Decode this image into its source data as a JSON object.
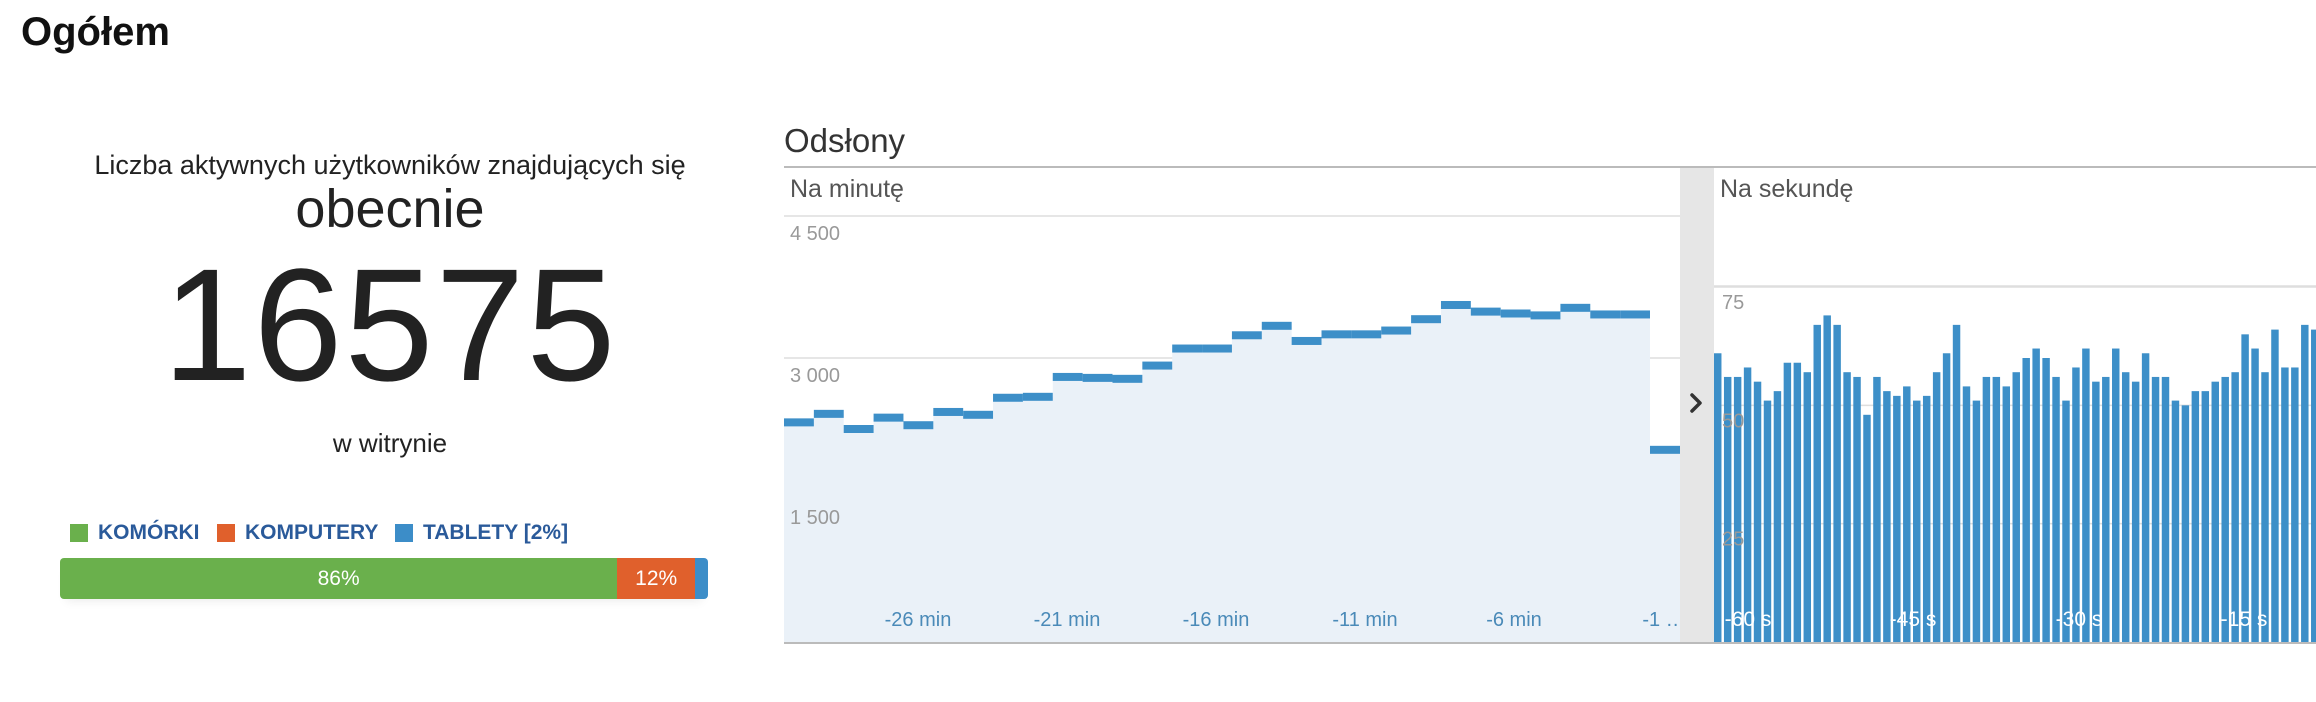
{
  "page": {
    "title": "Ogółem"
  },
  "active_users": {
    "label": "Liczba aktywnych użytkowników znajdujących się",
    "now": "obecnie",
    "count": "16575",
    "where": "w witrynie"
  },
  "devices": {
    "legend": [
      {
        "label": "KOMÓRKI",
        "color": "#6ab04c"
      },
      {
        "label": "KOMPUTERY",
        "color": "#e0602c"
      },
      {
        "label": "TABLETY [2%]",
        "color": "#3c8dc8"
      }
    ],
    "bar": [
      {
        "label": "86%",
        "value": 86,
        "color": "#6ab04c"
      },
      {
        "label": "12%",
        "value": 12,
        "color": "#e0602c"
      },
      {
        "label": "",
        "value": 2,
        "color": "#3c8dc8"
      }
    ]
  },
  "pageviews": {
    "title": "Odsłony",
    "toggle_icon": "chevron-right-icon"
  },
  "chart_data": [
    {
      "type": "line",
      "title": "Na minutę",
      "ylim": [
        0,
        4500
      ],
      "yticks": [
        {
          "value": 1500,
          "label": "1 500"
        },
        {
          "value": 3000,
          "label": "3 000"
        },
        {
          "value": 4500,
          "label": "4 500"
        }
      ],
      "xtick_labels": [
        "-26 min",
        "-21 min",
        "-16 min",
        "-11 min",
        "-6 min",
        "-1 …"
      ],
      "series": [
        {
          "values": [
            2320,
            2410,
            2250,
            2370,
            2290,
            2430,
            2400,
            2580,
            2590,
            2800,
            2790,
            2780,
            2920,
            3100,
            3100,
            3240,
            3340,
            3180,
            3250,
            3250,
            3290,
            3410,
            3560,
            3490,
            3470,
            3450,
            3530,
            3460,
            3460,
            2030
          ],
          "color": "#3d8fc8",
          "fill": "#eaf1f8"
        }
      ],
      "grid": true
    },
    {
      "type": "bar",
      "title": "Na sekundę",
      "ylim": [
        0,
        90
      ],
      "yticks": [
        {
          "value": 25,
          "label": "25"
        },
        {
          "value": 50,
          "label": "50"
        },
        {
          "value": 75,
          "label": "75"
        }
      ],
      "xtick_labels": [
        "-60 s",
        "-45 s",
        "-30 s",
        "-15 s"
      ],
      "values": [
        61,
        56,
        56,
        58,
        55,
        51,
        53,
        59,
        59,
        57,
        67,
        69,
        67,
        57,
        56,
        48,
        56,
        53,
        52,
        54,
        51,
        52,
        57,
        61,
        67,
        54,
        51,
        56,
        56,
        54,
        57,
        60,
        62,
        60,
        56,
        51,
        58,
        62,
        55,
        56,
        62,
        57,
        55,
        61,
        56,
        56,
        51,
        50,
        53,
        53,
        55,
        56,
        57,
        65,
        62,
        57,
        66,
        58,
        58,
        67,
        66
      ],
      "color": "#3d8fc8",
      "grid": true
    }
  ]
}
